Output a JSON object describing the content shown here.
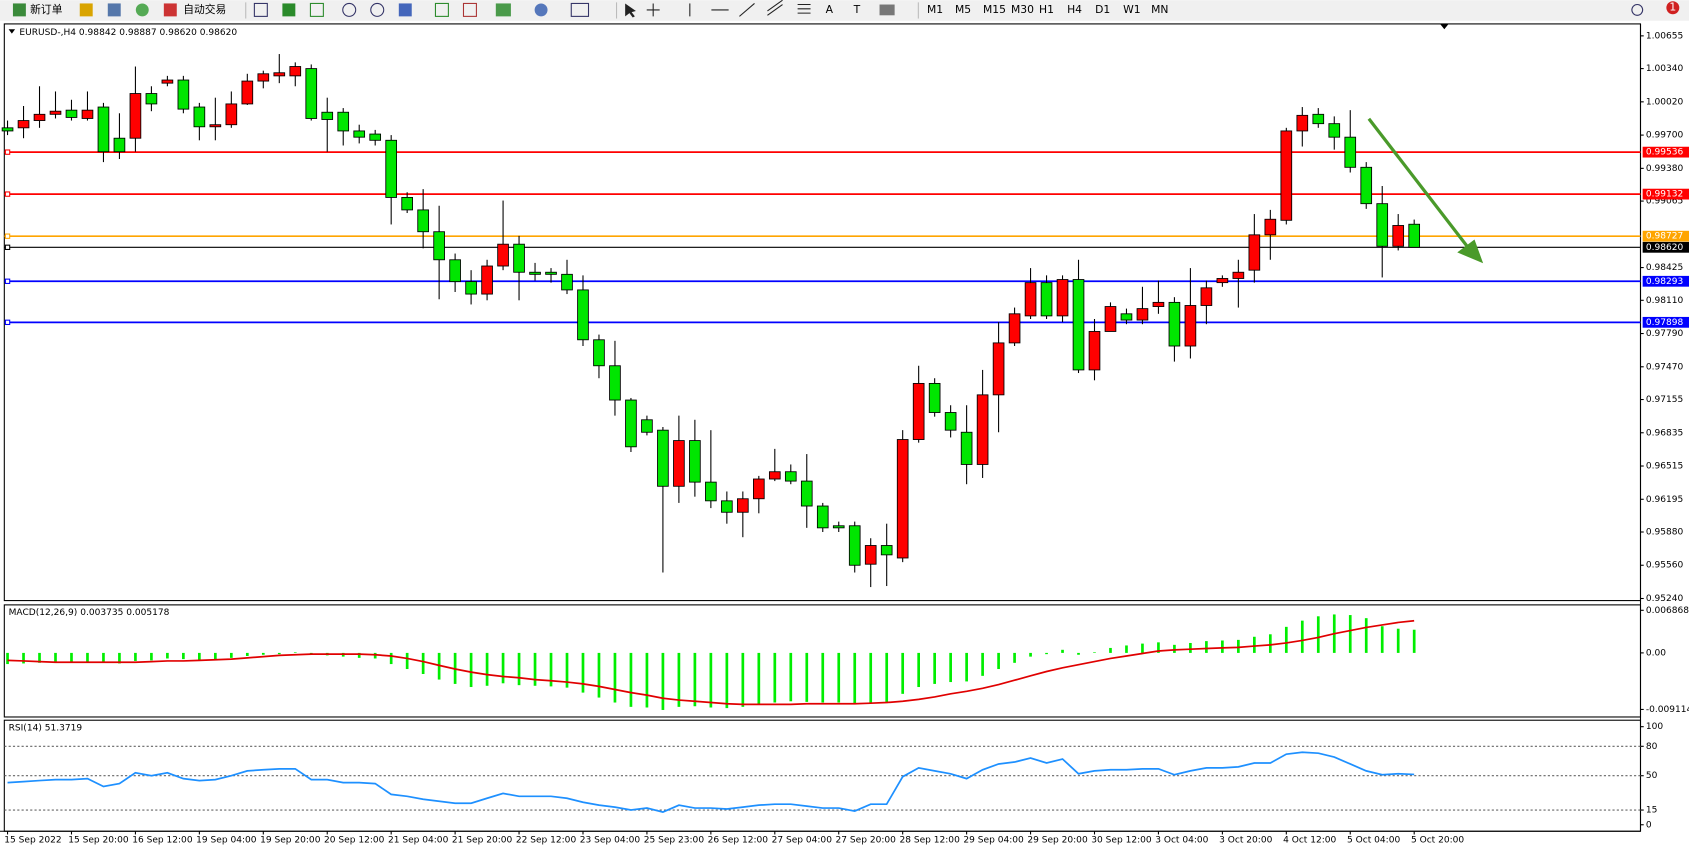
{
  "toolbar": {
    "new_order": "新订单",
    "auto_trading": "自动交易",
    "tools": [
      "A",
      "T"
    ],
    "timeframes": [
      "M1",
      "M5",
      "M15",
      "M30",
      "H1",
      "H4",
      "D1",
      "W1",
      "MN"
    ],
    "badge": "1"
  },
  "chart_data": [
    {
      "type": "candlestick",
      "title": "EURUSD-,H4  0.98842 0.98887 0.98620 0.98620",
      "categories": [
        "15 Sep 2022",
        null,
        null,
        null,
        "15 Sep 20:00",
        null,
        null,
        null,
        "16 Sep 12:00",
        null,
        null,
        null,
        "19 Sep 04:00",
        null,
        null,
        null,
        "19 Sep 20:00",
        null,
        null,
        null,
        "20 Sep 12:00",
        null,
        null,
        null,
        "21 Sep 04:00",
        null,
        null,
        null,
        "21 Sep 20:00",
        null,
        null,
        null,
        "22 Sep 12:00",
        null,
        null,
        null,
        "23 Sep 04:00",
        null,
        null,
        null,
        "25 Sep 23:00",
        null,
        null,
        null,
        "26 Sep 12:00",
        null,
        null,
        null,
        "27 Sep 04:00",
        null,
        null,
        null,
        "27 Sep 20:00",
        null,
        null,
        null,
        "28 Sep 12:00",
        null,
        null,
        null,
        "29 Sep 04:00",
        null,
        null,
        null,
        "29 Sep 20:00",
        null,
        null,
        null,
        "30 Sep 12:00",
        null,
        null,
        null,
        "3 Oct 04:00",
        null,
        null,
        null,
        "3 Oct 20:00",
        null,
        null,
        null,
        "4 Oct 12:00",
        null,
        null,
        null,
        "5 Oct 04:00",
        null,
        null,
        null,
        "5 Oct 20:00"
      ],
      "open": [
        0.9977,
        0.9977,
        0.9984,
        0.999,
        0.9994,
        0.9986,
        0.9997,
        0.9967,
        0.9967,
        1.001,
        1.002,
        1.0023,
        0.9997,
        0.9978,
        0.998,
        1.0,
        1.0022,
        1.0027,
        1.0027,
        1.0034,
        0.9992,
        0.9992,
        0.9974,
        0.9971,
        0.9965,
        0.991,
        0.9898,
        0.9877,
        0.985,
        0.9829,
        0.9817,
        0.9844,
        0.9865,
        0.9838,
        0.9838,
        0.9836,
        0.9821,
        0.9773,
        0.9748,
        0.9715,
        0.9696,
        0.9686,
        0.9632,
        0.9676,
        0.9636,
        0.9618,
        0.9607,
        0.962,
        0.9639,
        0.9646,
        0.9637,
        0.9613,
        0.9594,
        0.9594,
        0.9557,
        0.9575,
        0.9563,
        0.9677,
        0.9731,
        0.9703,
        0.9684,
        0.9653,
        0.972,
        0.977,
        0.9796,
        0.9828,
        0.9796,
        0.9831,
        0.9744,
        0.9781,
        0.9798,
        0.9792,
        0.9805,
        0.9809,
        0.9767,
        0.9806,
        0.9828,
        0.9832,
        0.984,
        0.9874,
        0.9888,
        0.9974,
        0.999,
        0.9981,
        0.9968,
        0.9939,
        0.9904,
        0.9863,
        0.98842
      ],
      "high": [
        0.9984,
        0.9998,
        1.0017,
        1.0012,
        1.0004,
        1.0012,
        1.0001,
        0.9991,
        1.0036,
        1.0017,
        1.0027,
        1.0027,
        1.0001,
        1.0006,
        1.0012,
        1.0029,
        1.0032,
        1.0048,
        1.004,
        1.0038,
        1.0006,
        0.9996,
        0.998,
        0.9975,
        0.997,
        0.9915,
        0.9918,
        0.9902,
        0.9856,
        0.984,
        0.985,
        0.9907,
        0.9873,
        0.9847,
        0.9842,
        0.985,
        0.9835,
        0.9778,
        0.9772,
        0.9717,
        0.97,
        0.9689,
        0.97,
        0.9696,
        0.9686,
        0.9627,
        0.9627,
        0.9642,
        0.9668,
        0.9653,
        0.9663,
        0.9616,
        0.9598,
        0.9598,
        0.9582,
        0.9596,
        0.9686,
        0.9748,
        0.9736,
        0.971,
        0.971,
        0.9744,
        0.979,
        0.9804,
        0.9842,
        0.9835,
        0.9835,
        0.985,
        0.9793,
        0.9809,
        0.9803,
        0.9824,
        0.983,
        0.9814,
        0.9842,
        0.983,
        0.9835,
        0.985,
        0.9894,
        0.9898,
        0.9977,
        0.9997,
        0.9996,
        0.9988,
        0.9994,
        0.9944,
        0.9921,
        0.9894,
        0.98887
      ],
      "low": [
        0.997,
        0.9967,
        0.9977,
        0.9986,
        0.9984,
        0.9984,
        0.9944,
        0.9947,
        0.9954,
        0.9993,
        1.0017,
        0.9991,
        0.9965,
        0.9965,
        0.9977,
        0.9999,
        1.0015,
        1.002,
        1.0017,
        0.9984,
        0.9954,
        0.996,
        0.9962,
        0.996,
        0.9884,
        0.9895,
        0.9861,
        0.9812,
        0.9819,
        0.9807,
        0.9811,
        0.984,
        0.9811,
        0.983,
        0.9828,
        0.9817,
        0.9767,
        0.9736,
        0.97,
        0.9665,
        0.9681,
        0.9549,
        0.9616,
        0.9622,
        0.9611,
        0.9596,
        0.9583,
        0.9606,
        0.9637,
        0.9634,
        0.9592,
        0.9588,
        0.9588,
        0.9549,
        0.9535,
        0.9536,
        0.9559,
        0.9674,
        0.9699,
        0.9679,
        0.9634,
        0.964,
        0.9684,
        0.9767,
        0.9793,
        0.9793,
        0.979,
        0.9741,
        0.9734,
        0.9783,
        0.9788,
        0.9788,
        0.9798,
        0.9752,
        0.9755,
        0.9788,
        0.9824,
        0.9804,
        0.9828,
        0.985,
        0.9884,
        0.9959,
        0.9977,
        0.9956,
        0.9934,
        0.9899,
        0.9833,
        0.9859,
        0.9862
      ],
      "close": [
        0.9974,
        0.9984,
        0.999,
        0.9993,
        0.9987,
        0.9994,
        0.9954,
        0.9954,
        1.001,
        1.0,
        1.0023,
        0.9995,
        0.9978,
        0.998,
        1.0,
        1.0022,
        1.0029,
        1.003,
        1.0036,
        0.9986,
        0.9985,
        0.9974,
        0.9968,
        0.9965,
        0.991,
        0.9898,
        0.9877,
        0.985,
        0.9829,
        0.9817,
        0.9844,
        0.9865,
        0.9838,
        0.9836,
        0.9836,
        0.9821,
        0.9773,
        0.9748,
        0.9715,
        0.967,
        0.9684,
        0.9632,
        0.9676,
        0.9636,
        0.9618,
        0.9607,
        0.962,
        0.9639,
        0.9646,
        0.9637,
        0.9613,
        0.9592,
        0.9592,
        0.9556,
        0.9575,
        0.9566,
        0.9677,
        0.9731,
        0.9703,
        0.9686,
        0.9653,
        0.972,
        0.977,
        0.9798,
        0.9828,
        0.9796,
        0.9831,
        0.9744,
        0.9781,
        0.9805,
        0.9792,
        0.9803,
        0.9809,
        0.9767,
        0.9806,
        0.9823,
        0.9832,
        0.9838,
        0.9874,
        0.9889,
        0.9974,
        0.9989,
        0.9981,
        0.9968,
        0.9939,
        0.9904,
        0.9863,
        0.9883,
        0.9862
      ],
      "up_color": "#ff0000",
      "down_color": "#00e600",
      "ylim": [
        0.9522,
        1.0077
      ],
      "yticks": [
        1.00655,
        {
          "value": 1.0034,
          "label": "1.00340"
        },
        {
          "value": 1.0002,
          "label": "1.00020"
        },
        {
          "value": 0.997,
          "label": "0.99700"
        },
        {
          "value": 0.9938,
          "label": "0.99380"
        },
        0.99065,
        0.98425,
        {
          "value": 0.9811,
          "label": "0.98110"
        },
        {
          "value": 0.9779,
          "label": "0.97790"
        },
        {
          "value": 0.9747,
          "label": "0.97470"
        },
        0.97155,
        0.96835,
        0.96515,
        0.96195,
        {
          "value": 0.9588,
          "label": "0.95880"
        },
        {
          "value": 0.9556,
          "label": "0.95560"
        },
        {
          "value": 0.9524,
          "label": "0.95240"
        }
      ],
      "levels": [
        {
          "value": 0.99536,
          "color": "#ff0000"
        },
        {
          "value": 0.99132,
          "color": "#ff0000"
        },
        {
          "value": 0.98727,
          "color": "#ffa500"
        },
        {
          "value": 0.9862,
          "label": "0.98620",
          "color": "#000000"
        },
        {
          "value": 0.98293,
          "color": "#0000ff"
        },
        {
          "value": 0.97898,
          "color": "#0000ff"
        }
      ]
    },
    {
      "type": "macd",
      "title": "MACD(12,26,9) 0.003735 0.005178",
      "series": [
        {
          "type": "bar",
          "color": "#00ee00",
          "values": [
            -0.0018,
            -0.0017,
            -0.0016,
            -0.0015,
            -0.0015,
            -0.0014,
            -0.0016,
            -0.0017,
            -0.0013,
            -0.0012,
            -0.0009,
            -0.001,
            -0.0011,
            -0.001,
            -0.0008,
            -0.0005,
            -0.0003,
            -0.0002,
            0.0001,
            -0.0002,
            -0.0004,
            -0.0006,
            -0.0008,
            -0.0009,
            -0.0018,
            -0.0026,
            -0.0034,
            -0.0043,
            -0.005,
            -0.0055,
            -0.0053,
            -0.0049,
            -0.0052,
            -0.0053,
            -0.0054,
            -0.0056,
            -0.0064,
            -0.0072,
            -0.008,
            -0.0087,
            -0.0088,
            -0.0092,
            -0.0087,
            -0.0086,
            -0.0088,
            -0.0089,
            -0.0087,
            -0.0083,
            -0.008,
            -0.0078,
            -0.0079,
            -0.008,
            -0.008,
            -0.0083,
            -0.0081,
            -0.008,
            -0.0066,
            -0.0055,
            -0.005,
            -0.0047,
            -0.0046,
            -0.0037,
            -0.0026,
            -0.0016,
            -0.0006,
            -0.0002,
            0.0005,
            -0.0003,
            0.0001,
            0.0008,
            0.0012,
            0.0015,
            0.0017,
            0.0013,
            0.0016,
            0.0019,
            0.002,
            0.0021,
            0.0026,
            0.003,
            0.0042,
            0.0052,
            0.0059,
            0.0062,
            0.0061,
            0.0056,
            0.0043,
            0.0039,
            0.003735
          ]
        },
        {
          "type": "line",
          "color": "#e00000",
          "values": [
            -0.0012,
            -0.0013,
            -0.0014,
            -0.0015,
            -0.0015,
            -0.0015,
            -0.0015,
            -0.0015,
            -0.0015,
            -0.0014,
            -0.0013,
            -0.0013,
            -0.0012,
            -0.0011,
            -0.001,
            -0.0008,
            -0.0006,
            -0.0004,
            -0.0003,
            -0.0002,
            -0.0002,
            -0.0002,
            -0.0002,
            -0.0003,
            -0.0005,
            -0.0009,
            -0.0014,
            -0.002,
            -0.0026,
            -0.0031,
            -0.0035,
            -0.0038,
            -0.004,
            -0.0043,
            -0.0045,
            -0.0047,
            -0.005,
            -0.0054,
            -0.0059,
            -0.0064,
            -0.0068,
            -0.0073,
            -0.0076,
            -0.0078,
            -0.008,
            -0.0082,
            -0.0083,
            -0.0083,
            -0.0083,
            -0.0083,
            -0.0082,
            -0.0082,
            -0.0082,
            -0.0082,
            -0.0081,
            -0.008,
            -0.0078,
            -0.0075,
            -0.0071,
            -0.0066,
            -0.0062,
            -0.0057,
            -0.0051,
            -0.0044,
            -0.0037,
            -0.003,
            -0.0024,
            -0.0019,
            -0.0014,
            -0.0009,
            -0.0005,
            -0.0001,
            0.0003,
            0.0005,
            0.0006,
            0.0007,
            0.0008,
            0.0009,
            0.0011,
            0.0013,
            0.0016,
            0.002,
            0.0025,
            0.0031,
            0.0036,
            0.0041,
            0.0045,
            0.0049,
            0.005178
          ]
        }
      ],
      "ylim": [
        -0.01033,
        0.00774
      ],
      "yticks": [
        0.006868,
        {
          "value": 0,
          "label": "0.00"
        },
        -0.009114
      ]
    },
    {
      "type": "line",
      "title": "RSI(14) 51.3719",
      "series": [
        {
          "color": "#1e90ff",
          "values": [
            43,
            44,
            45,
            46,
            46,
            47,
            39,
            42,
            53,
            50,
            53,
            47,
            45,
            46,
            50,
            55,
            56,
            57,
            57,
            46,
            46,
            43,
            43,
            42,
            31,
            29,
            26,
            24,
            22,
            22,
            27,
            32,
            29,
            29,
            29,
            27,
            23,
            20,
            18,
            15,
            17,
            13,
            20,
            17,
            17,
            16,
            18,
            20,
            21,
            21,
            19,
            17,
            17,
            14,
            21,
            21,
            49,
            58,
            55,
            52,
            47,
            56,
            62,
            64,
            68,
            63,
            67,
            52,
            55,
            56,
            56,
            57,
            57,
            51,
            55,
            58,
            58,
            59,
            63,
            63,
            72,
            74,
            73,
            69,
            62,
            55,
            51,
            52,
            51.3719
          ]
        }
      ],
      "ylim": [
        -6.6,
        106.6
      ],
      "yticks": [
        100,
        80,
        50,
        15,
        0
      ],
      "levels": [
        80,
        50,
        15
      ]
    }
  ]
}
